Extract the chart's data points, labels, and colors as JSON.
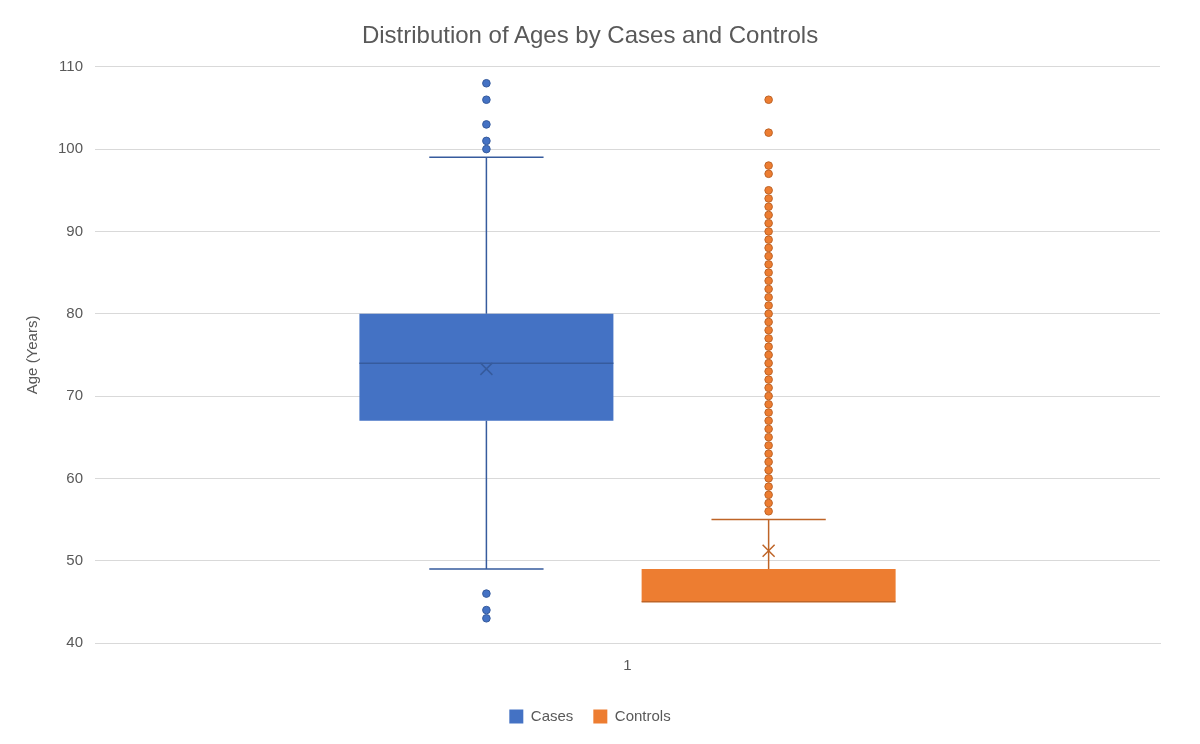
{
  "chart_data": {
    "type": "box",
    "title": "Distribution of Ages by Cases and Controls",
    "ylabel": "Age (Years)",
    "categories": [
      "1"
    ],
    "series": [
      {
        "name": "Cases",
        "color": "#4472c4",
        "boxes": [
          {
            "low": 49,
            "q1": 67,
            "median": 74,
            "q3": 80,
            "high": 99,
            "mean": 73.3,
            "outliers": [
              108,
              106,
              103,
              101,
              100,
              46,
              44,
              43
            ]
          }
        ]
      },
      {
        "name": "Controls",
        "color": "#ed7d31",
        "boxes": [
          {
            "low": 45,
            "q1": 45,
            "median": 45,
            "q3": 49,
            "high": 55,
            "mean": 51.2,
            "outliers": [
              106,
              102,
              98,
              97,
              95,
              94,
              93,
              92,
              91,
              90,
              89,
              88,
              87,
              86,
              85,
              84,
              83,
              82,
              81,
              80,
              79,
              78,
              77,
              76,
              75,
              74,
              73,
              72,
              71,
              70,
              69,
              68,
              67,
              66,
              65,
              64,
              63,
              62,
              61,
              60,
              59,
              58,
              57,
              56
            ]
          }
        ]
      }
    ],
    "ylim": [
      40,
      110
    ],
    "yticks": [
      40,
      50,
      60,
      70,
      80,
      90,
      100,
      110
    ],
    "grid": "y",
    "legend": "bottom"
  }
}
